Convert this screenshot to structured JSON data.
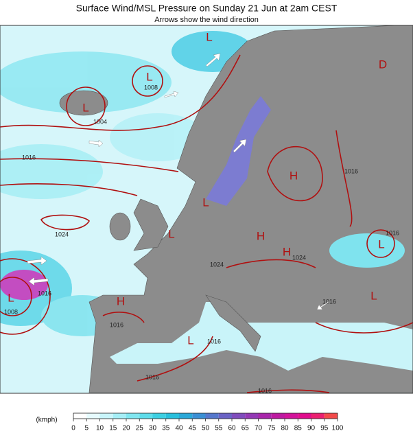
{
  "header": {
    "title": "Surface Wind/MSL Pressure on Sunday 21 Jun at 2am CEST",
    "subtitle": "Arrows show the wind direction"
  },
  "pressure_centers": [
    "L",
    "L",
    "L",
    "L",
    "H",
    "L",
    "L",
    "H",
    "H",
    "H",
    "L",
    "D",
    "L",
    "L"
  ],
  "isobar_labels": [
    1008,
    1004,
    1016,
    1024,
    1008,
    1016,
    1024,
    1016,
    1024,
    1016,
    1016,
    1016,
    1016,
    1016,
    1016
  ],
  "colorbar": {
    "unit": "(kmph)",
    "lim": [
      0,
      100
    ],
    "ticks": [
      0,
      5,
      10,
      15,
      20,
      25,
      30,
      35,
      40,
      45,
      50,
      55,
      60,
      65,
      70,
      75,
      80,
      85,
      90,
      95,
      100
    ],
    "colors": [
      "#ffffff",
      "#e6fbff",
      "#c8f5fb",
      "#a5eef6",
      "#80e6f0",
      "#5ddcea",
      "#3ccfe2",
      "#28bfdc",
      "#2aa8d8",
      "#3a8fd4",
      "#5577cc",
      "#6a62c4",
      "#7f4cbc",
      "#9338b4",
      "#a826aa",
      "#bd1aa0",
      "#d2139a",
      "#e00c8c",
      "#ea2070",
      "#f24a4a"
    ]
  }
}
